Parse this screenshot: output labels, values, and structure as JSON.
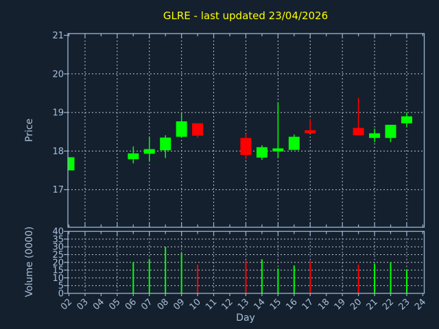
{
  "title": "GLRE - last updated 23/04/2026",
  "colors": {
    "background": "#14202e",
    "frame": "#9bb6d4",
    "tick_label": "#a8c0da",
    "grid": "#c3c8cf",
    "title": "#ffff00",
    "up": "#00ff00",
    "down": "#ff0000"
  },
  "x_axis": {
    "label": "Day",
    "ticks": [
      "02",
      "03",
      "04",
      "05",
      "06",
      "07",
      "08",
      "09",
      "10",
      "11",
      "12",
      "13",
      "14",
      "15",
      "16",
      "17",
      "18",
      "19",
      "20",
      "21",
      "22",
      "23",
      "24"
    ]
  },
  "price_panel": {
    "axis_label": "Price",
    "ticks": [
      "21",
      "20",
      "19",
      "18",
      "17"
    ],
    "tick_values": [
      21,
      20,
      19,
      18,
      17
    ]
  },
  "volume_panel": {
    "axis_label": "Volume (0000)",
    "ticks": [
      "40",
      "35",
      "30",
      "25",
      "20",
      "15",
      "10",
      "5",
      "0"
    ],
    "tick_values": [
      40,
      35,
      30,
      25,
      20,
      15,
      10,
      5,
      0
    ]
  },
  "chart_data": {
    "type": "candlestick",
    "title": "GLRE - last updated 23/04/2026",
    "xlabel": "Day",
    "ylabel": "Price",
    "ylabel2": "Volume (0000)",
    "price_ylim": [
      16.0,
      21.1
    ],
    "volume_ylim": [
      0,
      40
    ],
    "grid": true,
    "x_categories": [
      "02",
      "03",
      "04",
      "05",
      "06",
      "07",
      "08",
      "09",
      "10",
      "11",
      "12",
      "13",
      "14",
      "15",
      "16",
      "17",
      "18",
      "19",
      "20",
      "21",
      "22",
      "23",
      "24"
    ],
    "candles": [
      {
        "day": "02",
        "open": 17.5,
        "high": 17.84,
        "low": 17.5,
        "close": 17.84,
        "volume": null,
        "direction": "up"
      },
      {
        "day": "06",
        "open": 17.79,
        "high": 18.12,
        "low": 17.68,
        "close": 17.94,
        "volume": 20,
        "direction": "up"
      },
      {
        "day": "07",
        "open": 17.93,
        "high": 18.36,
        "low": 17.73,
        "close": 18.05,
        "volume": 22,
        "direction": "up"
      },
      {
        "day": "08",
        "open": 18.02,
        "high": 18.41,
        "low": 17.82,
        "close": 18.35,
        "volume": 30,
        "direction": "up"
      },
      {
        "day": "09",
        "open": 18.37,
        "high": 18.99,
        "low": 18.37,
        "close": 18.77,
        "volume": 26,
        "direction": "up"
      },
      {
        "day": "10",
        "open": 18.72,
        "high": 18.72,
        "low": 18.35,
        "close": 18.4,
        "volume": 18.5,
        "direction": "down"
      },
      {
        "day": "13",
        "open": 18.34,
        "high": 18.45,
        "low": 17.79,
        "close": 17.9,
        "volume": 21,
        "direction": "down"
      },
      {
        "day": "14",
        "open": 17.83,
        "high": 18.15,
        "low": 17.77,
        "close": 18.1,
        "volume": 22,
        "direction": "up"
      },
      {
        "day": "15",
        "open": 17.99,
        "high": 19.26,
        "low": 17.82,
        "close": 18.07,
        "volume": 16,
        "direction": "up"
      },
      {
        "day": "16",
        "open": 18.03,
        "high": 18.43,
        "low": 18.03,
        "close": 18.37,
        "volume": 18,
        "direction": "up"
      },
      {
        "day": "17",
        "open": 18.54,
        "high": 18.83,
        "low": 18.46,
        "close": 18.46,
        "volume": 21,
        "direction": "down"
      },
      {
        "day": "20",
        "open": 18.6,
        "high": 19.38,
        "low": 18.41,
        "close": 18.41,
        "volume": 18.5,
        "direction": "down"
      },
      {
        "day": "21",
        "open": 18.34,
        "high": 18.58,
        "low": 18.23,
        "close": 18.46,
        "volume": 19,
        "direction": "up"
      },
      {
        "day": "22",
        "open": 18.34,
        "high": 18.68,
        "low": 18.23,
        "close": 18.68,
        "volume": 20,
        "direction": "up"
      },
      {
        "day": "23",
        "open": 18.72,
        "high": 19.0,
        "low": 18.62,
        "close": 18.9,
        "volume": 15,
        "direction": "up"
      }
    ]
  }
}
